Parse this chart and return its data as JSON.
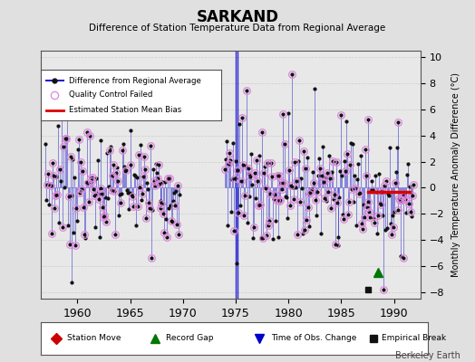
{
  "title": "SARKAND",
  "subtitle": "Difference of Station Temperature Data from Regional Average",
  "ylabel": "Monthly Temperature Anomaly Difference (°C)",
  "xlabel_years": [
    1960,
    1965,
    1970,
    1975,
    1980,
    1985,
    1990
  ],
  "ylim": [
    -8.5,
    10.5
  ],
  "xlim": [
    1956.5,
    1992.5
  ],
  "background_color": "#e0e0e0",
  "plot_bg_color": "#e8e8e8",
  "line_color": "#2222cc",
  "dot_color": "#111111",
  "qc_fail_color": "#dd88dd",
  "bias_line_color": "#dd0000",
  "bias_line_value": -0.3,
  "bias_line_start": 1987.5,
  "bias_line_end": 1991.5,
  "station_move_color": "#cc0000",
  "record_gap_color": "#007700",
  "obs_change_color": "#0000cc",
  "empirical_break_color": "#111111",
  "record_gaps": [
    1988.5
  ],
  "obs_changes": [
    1975.0,
    1975.2
  ],
  "empirical_breaks": [
    1987.5
  ],
  "watermark": "Berkeley Earth",
  "legend_bg": "#ffffff",
  "grid_color": "#cccccc",
  "yticks": [
    -8,
    -6,
    -4,
    -2,
    0,
    2,
    4,
    6,
    8,
    10
  ]
}
